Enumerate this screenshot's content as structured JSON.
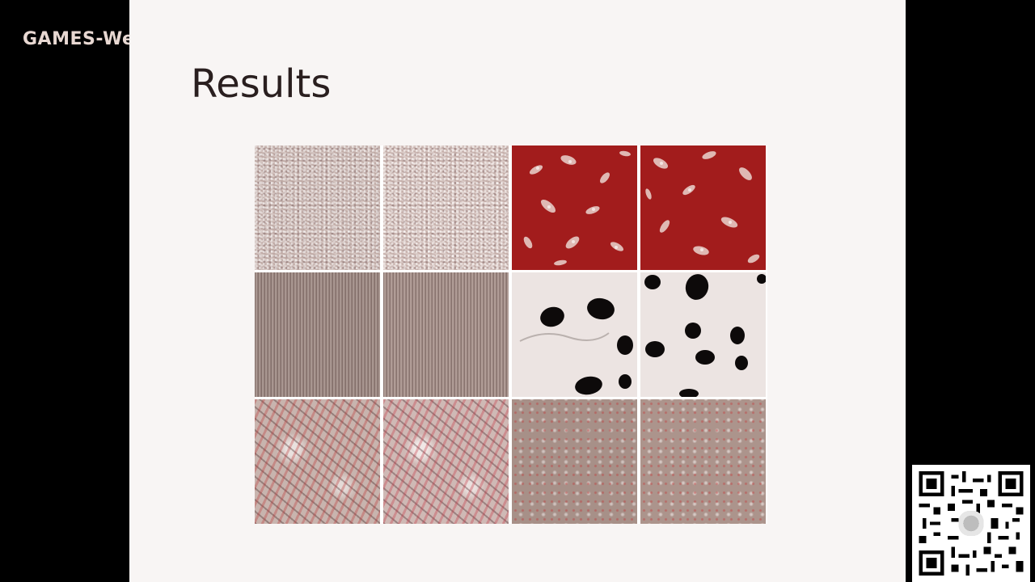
{
  "watermark": {
    "text": "GAMES-We"
  },
  "slide": {
    "title": "Results"
  },
  "texture_grid": {
    "rows": [
      [
        "plaster-result",
        "plaster-result",
        "red-floral-result",
        "red-floral-result"
      ],
      [
        "wood-grain-result",
        "wood-grain-result",
        "spots-result",
        "spots-result"
      ],
      [
        "red-marble-result",
        "red-marble-result",
        "mud-result",
        "mud-result"
      ]
    ]
  },
  "colors": {
    "background": "#000000",
    "slide_bg": "#f8f5f4",
    "accent_red": "#a21c1c"
  }
}
